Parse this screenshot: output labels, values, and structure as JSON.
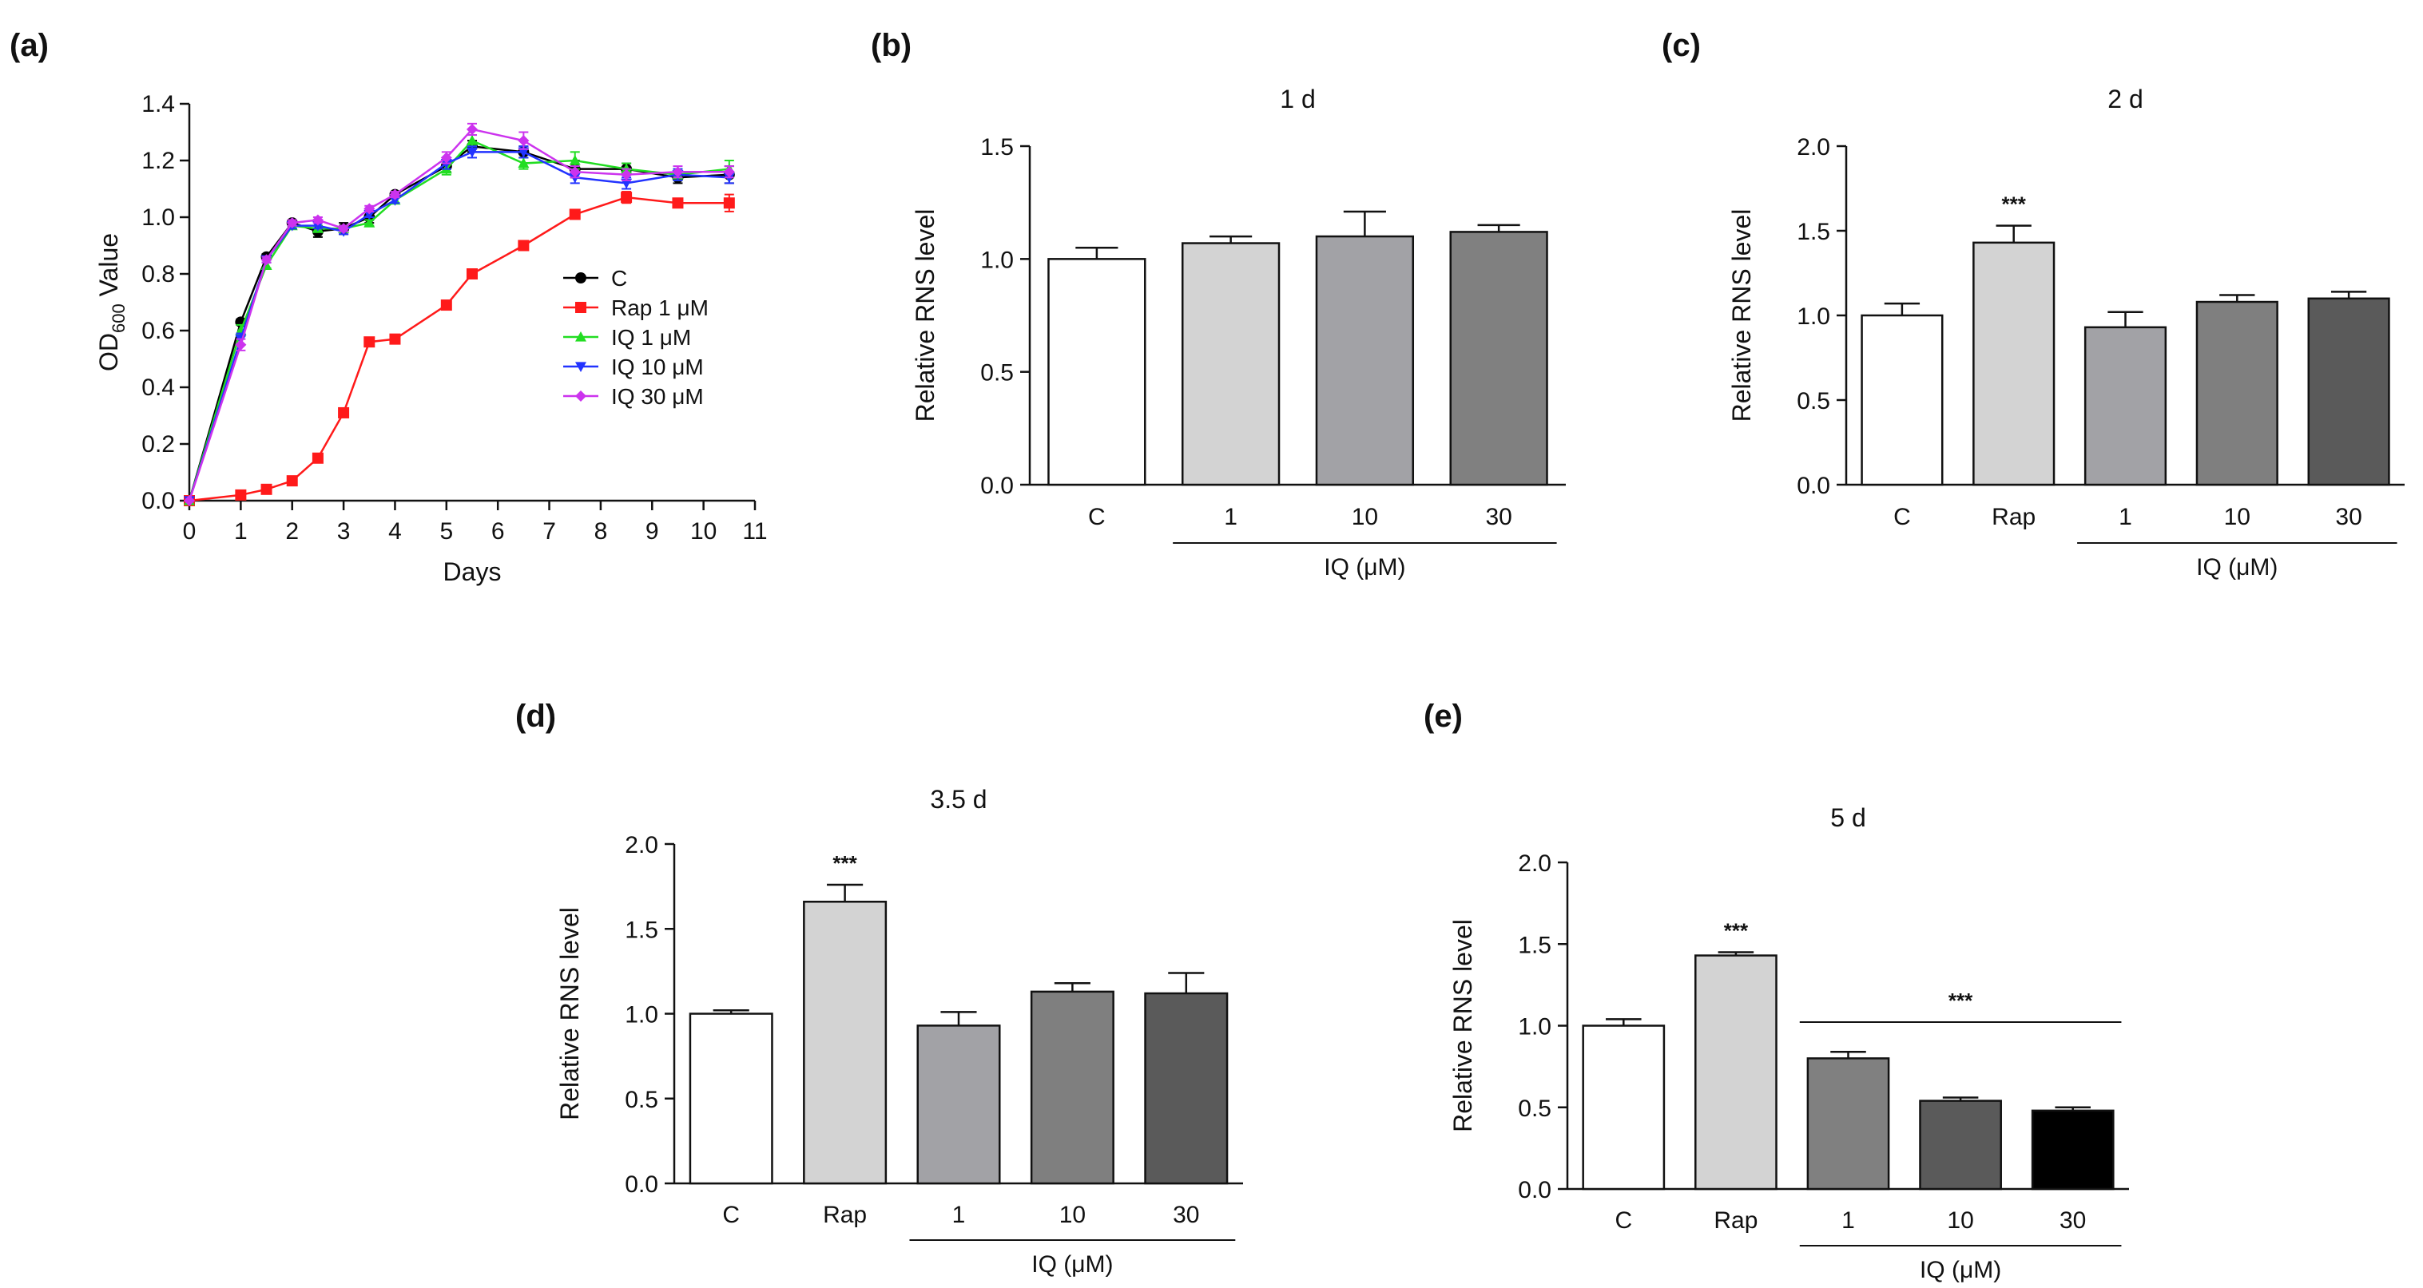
{
  "colors": {
    "axis": "#111111",
    "C": "#000000",
    "Rap": "#ff1a1a",
    "IQ1": "#22dd22",
    "IQ10": "#2233ff",
    "IQ30": "#cc33ee"
  },
  "chart_data": [
    {
      "id": "a",
      "panel_label": "(a)",
      "type": "line",
      "title": "",
      "xlabel": "Days",
      "ylabel_main": "OD",
      "ylabel_sub": "600",
      "ylabel_rest": " Value",
      "xlim": [
        0,
        11
      ],
      "ylim": [
        0,
        1.4
      ],
      "xticks": [
        "0",
        "1",
        "2",
        "3",
        "4",
        "5",
        "6",
        "7",
        "8",
        "9",
        "10",
        "11"
      ],
      "yticks": [
        "0.0",
        "0.2",
        "0.4",
        "0.6",
        "0.8",
        "1.0",
        "1.2",
        "1.4"
      ],
      "series": [
        {
          "name": "C",
          "color_key": "C",
          "marker": "circle",
          "x": [
            0,
            1,
            1.5,
            2,
            2.5,
            3,
            3.5,
            4,
            5,
            5.5,
            6.5,
            7.5,
            8.5,
            9.5,
            10.5
          ],
          "y": [
            0,
            0.63,
            0.86,
            0.98,
            0.95,
            0.96,
            1.0,
            1.08,
            1.18,
            1.25,
            1.23,
            1.17,
            1.17,
            1.14,
            1.15
          ],
          "err": [
            0,
            0.01,
            0.01,
            0.01,
            0.02,
            0.02,
            0.02,
            0.01,
            0.02,
            0.02,
            0.02,
            0.03,
            0.02,
            0.02,
            0.03
          ]
        },
        {
          "name": "Rap 1 μM",
          "color_key": "Rap",
          "marker": "square",
          "x": [
            0,
            1,
            1.5,
            2,
            2.5,
            3,
            3.5,
            4,
            5,
            5.5,
            6.5,
            7.5,
            8.5,
            9.5,
            10.5
          ],
          "y": [
            0,
            0.02,
            0.04,
            0.07,
            0.15,
            0.31,
            0.56,
            0.57,
            0.69,
            0.8,
            0.9,
            1.01,
            1.07,
            1.05,
            1.05
          ],
          "err": [
            0,
            0,
            0,
            0,
            0,
            0.01,
            0.01,
            0.01,
            0.01,
            0.01,
            0.01,
            0.01,
            0.02,
            0.01,
            0.03
          ]
        },
        {
          "name": "IQ 1 μM",
          "color_key": "IQ1",
          "marker": "triangle-up",
          "x": [
            0,
            1,
            1.5,
            2,
            2.5,
            3,
            3.5,
            4,
            5,
            5.5,
            6.5,
            7.5,
            8.5,
            9.5,
            10.5
          ],
          "y": [
            0,
            0.6,
            0.83,
            0.97,
            0.96,
            0.96,
            0.98,
            1.06,
            1.17,
            1.27,
            1.19,
            1.2,
            1.17,
            1.15,
            1.17
          ],
          "err": [
            0,
            0.02,
            0.01,
            0.01,
            0.01,
            0.01,
            0.01,
            0.01,
            0.02,
            0.02,
            0.02,
            0.03,
            0.02,
            0.02,
            0.03
          ]
        },
        {
          "name": "IQ 10 μM",
          "color_key": "IQ10",
          "marker": "triangle-down",
          "x": [
            0,
            1,
            1.5,
            2,
            2.5,
            3,
            3.5,
            4,
            5,
            5.5,
            6.5,
            7.5,
            8.5,
            9.5,
            10.5
          ],
          "y": [
            0,
            0.57,
            0.85,
            0.97,
            0.97,
            0.95,
            1.01,
            1.06,
            1.19,
            1.23,
            1.23,
            1.14,
            1.12,
            1.15,
            1.14
          ],
          "err": [
            0,
            0.02,
            0.01,
            0.01,
            0.01,
            0.01,
            0.01,
            0.01,
            0.02,
            0.02,
            0.02,
            0.02,
            0.02,
            0.02,
            0.02
          ]
        },
        {
          "name": "IQ 30 μM",
          "color_key": "IQ30",
          "marker": "diamond",
          "x": [
            0,
            1,
            1.5,
            2,
            2.5,
            3,
            3.5,
            4,
            5,
            5.5,
            6.5,
            7.5,
            8.5,
            9.5,
            10.5
          ],
          "y": [
            0,
            0.55,
            0.85,
            0.98,
            0.99,
            0.96,
            1.03,
            1.08,
            1.21,
            1.31,
            1.27,
            1.16,
            1.15,
            1.16,
            1.16
          ],
          "err": [
            0,
            0.02,
            0.01,
            0.01,
            0.01,
            0.01,
            0.01,
            0.01,
            0.02,
            0.02,
            0.03,
            0.02,
            0.02,
            0.02,
            0.02
          ]
        }
      ]
    },
    {
      "id": "b",
      "panel_label": "(b)",
      "type": "bar",
      "title": "1  d",
      "ylabel": "Relative RNS level",
      "ylim": [
        0,
        1.5
      ],
      "yticks": [
        "0.0",
        "0.5",
        "1.0",
        "1.5"
      ],
      "categories": [
        "C",
        "1",
        "10",
        "30"
      ],
      "values": [
        1.0,
        1.07,
        1.1,
        1.12
      ],
      "errors": [
        0.05,
        0.03,
        0.11,
        0.03
      ],
      "colors": [
        "#ffffff",
        "#d3d3d3",
        "#a2a2a6",
        "#808080"
      ],
      "significance": [
        "",
        "",
        "",
        ""
      ],
      "group_label": "IQ (μM)",
      "group_start": 1,
      "group_end": 3,
      "group_star": ""
    },
    {
      "id": "c",
      "panel_label": "(c)",
      "type": "bar",
      "title": "2 d",
      "ylabel": "Relative RNS level",
      "ylim": [
        0,
        2.0
      ],
      "yticks": [
        "0.0",
        "0.5",
        "1.0",
        "1.5",
        "2.0"
      ],
      "categories": [
        "C",
        "Rap",
        "1",
        "10",
        "30"
      ],
      "values": [
        1.0,
        1.43,
        0.93,
        1.08,
        1.1
      ],
      "errors": [
        0.07,
        0.1,
        0.09,
        0.04,
        0.04
      ],
      "colors": [
        "#ffffff",
        "#d3d3d3",
        "#a2a2a6",
        "#7f7f7f",
        "#5a5a5a"
      ],
      "significance": [
        "",
        "***",
        "",
        "",
        ""
      ],
      "group_label": "IQ (μM)",
      "group_start": 2,
      "group_end": 4,
      "group_star": ""
    },
    {
      "id": "d",
      "panel_label": "(d)",
      "type": "bar",
      "title": "3.5 d",
      "ylabel": "Relative RNS level",
      "ylim": [
        0,
        2.0
      ],
      "yticks": [
        "0.0",
        "0.5",
        "1.0",
        "1.5",
        "2.0"
      ],
      "categories": [
        "C",
        "Rap",
        "1",
        "10",
        "30"
      ],
      "values": [
        1.0,
        1.66,
        0.93,
        1.13,
        1.12
      ],
      "errors": [
        0.02,
        0.1,
        0.08,
        0.05,
        0.12
      ],
      "colors": [
        "#ffffff",
        "#d3d3d3",
        "#a2a2a6",
        "#7f7f7f",
        "#5a5a5a"
      ],
      "significance": [
        "",
        "***",
        "",
        "",
        ""
      ],
      "group_label": "IQ (μM)",
      "group_start": 2,
      "group_end": 4,
      "group_star": ""
    },
    {
      "id": "e",
      "panel_label": "(e)",
      "type": "bar",
      "title": "5 d",
      "ylabel": "Relative RNS level",
      "ylim": [
        0,
        2.0
      ],
      "yticks": [
        "0.0",
        "0.5",
        "1.0",
        "1.5",
        "2.0"
      ],
      "categories": [
        "C",
        "Rap",
        "1",
        "10",
        "30"
      ],
      "values": [
        1.0,
        1.43,
        0.8,
        0.54,
        0.48
      ],
      "errors": [
        0.04,
        0.02,
        0.04,
        0.02,
        0.02
      ],
      "colors": [
        "#ffffff",
        "#d3d3d3",
        "#808080",
        "#5a5a5a",
        "#000000"
      ],
      "significance": [
        "",
        "***",
        "",
        "",
        ""
      ],
      "group_label": "IQ (μM)",
      "group_start": 2,
      "group_end": 4,
      "group_star": "***"
    }
  ]
}
